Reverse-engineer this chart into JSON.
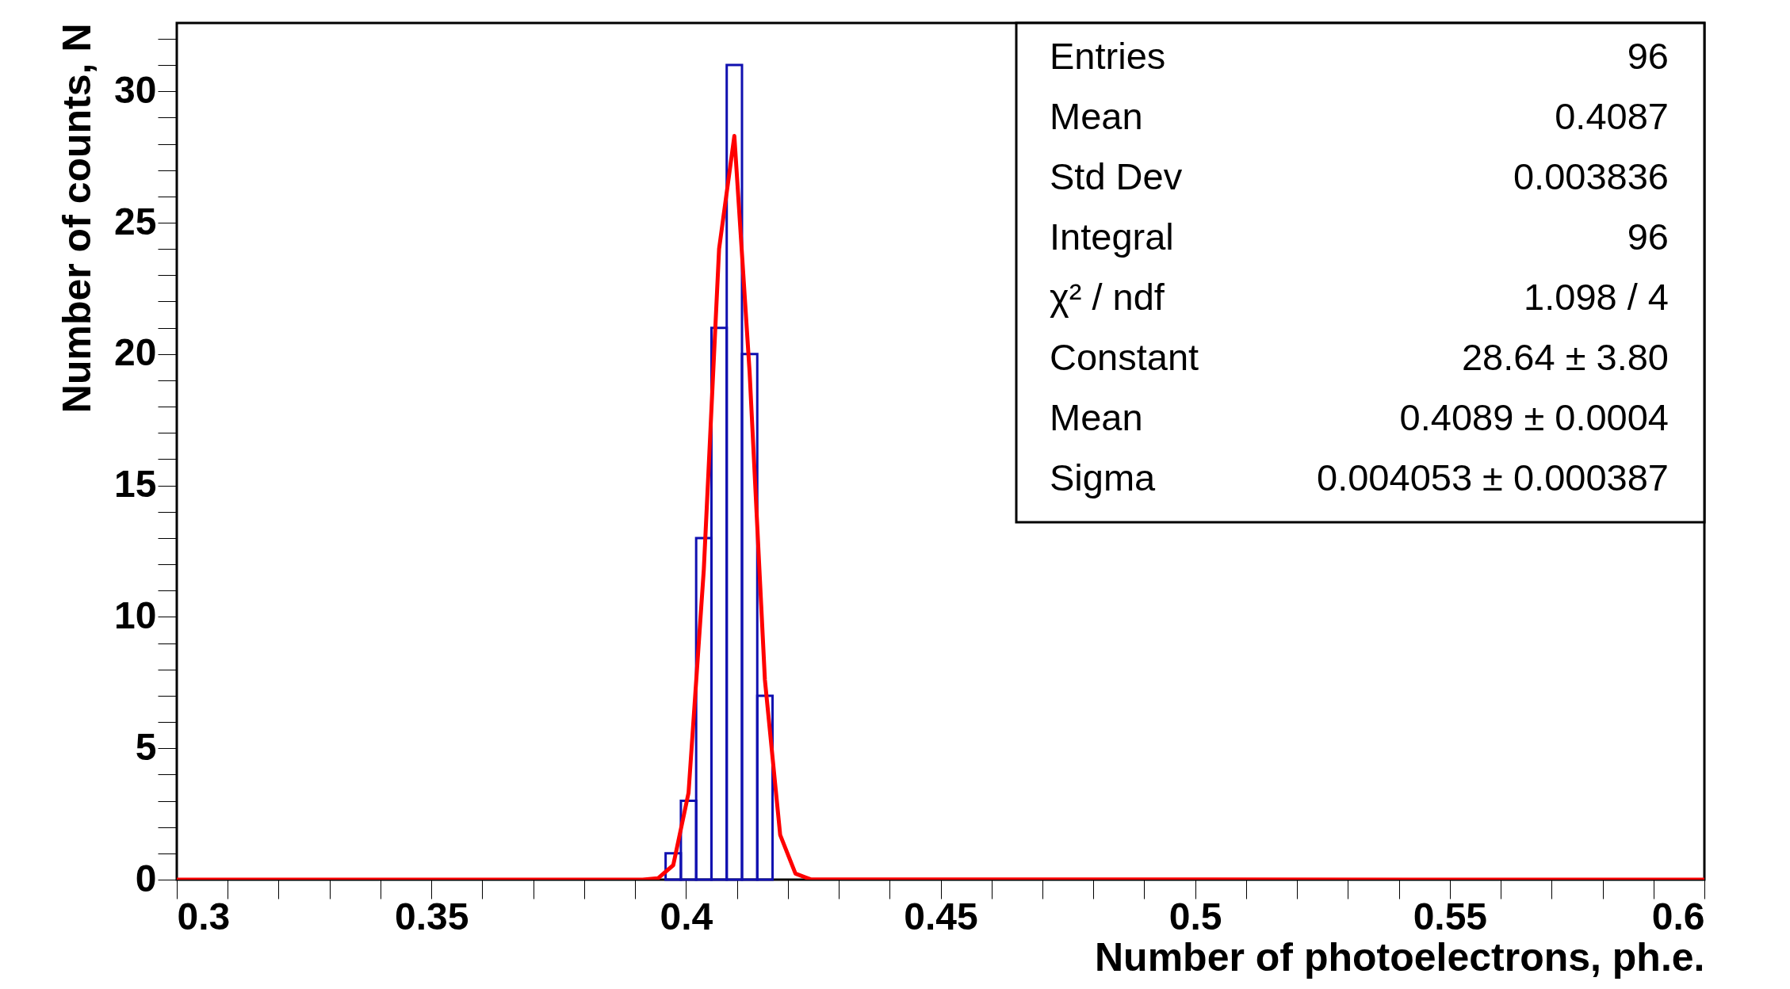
{
  "chart_data": {
    "type": "histogram",
    "xlabel": "Number of photoelectrons, ph.e.",
    "ylabel": "Number of counts, N",
    "bins": [
      0.396,
      0.399,
      0.402,
      0.405,
      0.408,
      0.411,
      0.414,
      0.417
    ],
    "values": [
      1,
      3,
      13,
      21,
      31,
      20,
      7
    ],
    "color": "#1010b0",
    "series": [
      {
        "type": "line",
        "color": "#ff0000",
        "x": [
          0.3,
          0.3915,
          0.3945,
          0.3975,
          0.4005,
          0.4035,
          0.4065,
          0.4095,
          0.4125,
          0.4155,
          0.4185,
          0.4215,
          0.4245,
          0.6
        ],
        "values": [
          0,
          0,
          0.05,
          0.55,
          3.3,
          11.8,
          24.0,
          28.3,
          19.3,
          7.6,
          1.7,
          0.23,
          0.01,
          0
        ]
      }
    ],
    "xlim": [
      0.3,
      0.6
    ],
    "ylim": [
      0,
      32.6
    ],
    "xticks": [
      0.3,
      0.35,
      0.4,
      0.45,
      0.5,
      0.55,
      0.6
    ],
    "yticks": [
      0,
      5,
      10,
      15,
      20,
      25,
      30
    ],
    "grid": false,
    "annotations": [
      "Entries",
      "96",
      "Mean",
      "0.4087",
      "Std Dev",
      "0.003836",
      "Integral",
      "96",
      "χ² / ndf",
      "1.098 / 4",
      "Constant",
      "28.64 ± 3.80",
      "Mean",
      "0.4089 ± 0.0004",
      "Sigma",
      "0.004053 ± 0.000387"
    ]
  }
}
